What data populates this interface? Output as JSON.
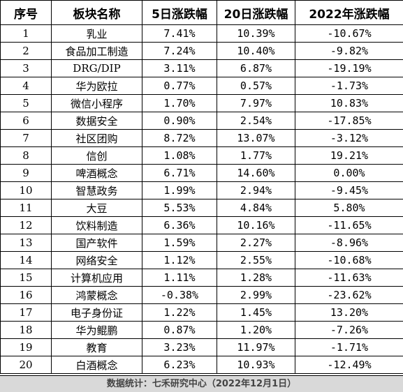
{
  "table": {
    "headers": [
      "序号",
      "板块名称",
      "5日涨跌幅",
      "20日涨跌幅",
      "2022年涨跌幅"
    ],
    "rows": [
      [
        "1",
        "乳业",
        "7.41%",
        "10.39%",
        "-10.67%"
      ],
      [
        "2",
        "食品加工制造",
        "7.24%",
        "10.40%",
        "-9.82%"
      ],
      [
        "3",
        "DRG/DIP",
        "3.11%",
        "6.87%",
        "-19.19%"
      ],
      [
        "4",
        "华为欧拉",
        "0.77%",
        "0.57%",
        "-1.73%"
      ],
      [
        "5",
        "微信小程序",
        "1.70%",
        "7.97%",
        "10.83%"
      ],
      [
        "6",
        "数据安全",
        "0.90%",
        "2.54%",
        "-17.85%"
      ],
      [
        "7",
        "社区团购",
        "8.72%",
        "13.07%",
        "-3.12%"
      ],
      [
        "8",
        "信创",
        "1.08%",
        "1.77%",
        "19.21%"
      ],
      [
        "9",
        "啤酒概念",
        "6.71%",
        "14.60%",
        "0.00%"
      ],
      [
        "10",
        "智慧政务",
        "1.99%",
        "2.94%",
        "-9.45%"
      ],
      [
        "11",
        "大豆",
        "5.53%",
        "4.84%",
        "5.80%"
      ],
      [
        "12",
        "饮料制造",
        "6.36%",
        "10.16%",
        "-11.65%"
      ],
      [
        "13",
        "国产软件",
        "1.59%",
        "2.27%",
        "-8.96%"
      ],
      [
        "14",
        "网络安全",
        "1.12%",
        "2.55%",
        "-10.68%"
      ],
      [
        "15",
        "计算机应用",
        "1.11%",
        "1.28%",
        "-11.63%"
      ],
      [
        "16",
        "鸿蒙概念",
        "-0.38%",
        "2.99%",
        "-23.62%"
      ],
      [
        "17",
        "电子身份证",
        "1.22%",
        "1.45%",
        "13.20%"
      ],
      [
        "18",
        "华为鲲鹏",
        "0.87%",
        "1.20%",
        "-7.26%"
      ],
      [
        "19",
        "教育",
        "3.23%",
        "11.97%",
        "-1.71%"
      ],
      [
        "20",
        "白酒概念",
        "6.23%",
        "10.93%",
        "-12.49%"
      ]
    ]
  },
  "footer": {
    "source": "数据统计：七禾研究中心（2022年12月1日）"
  }
}
